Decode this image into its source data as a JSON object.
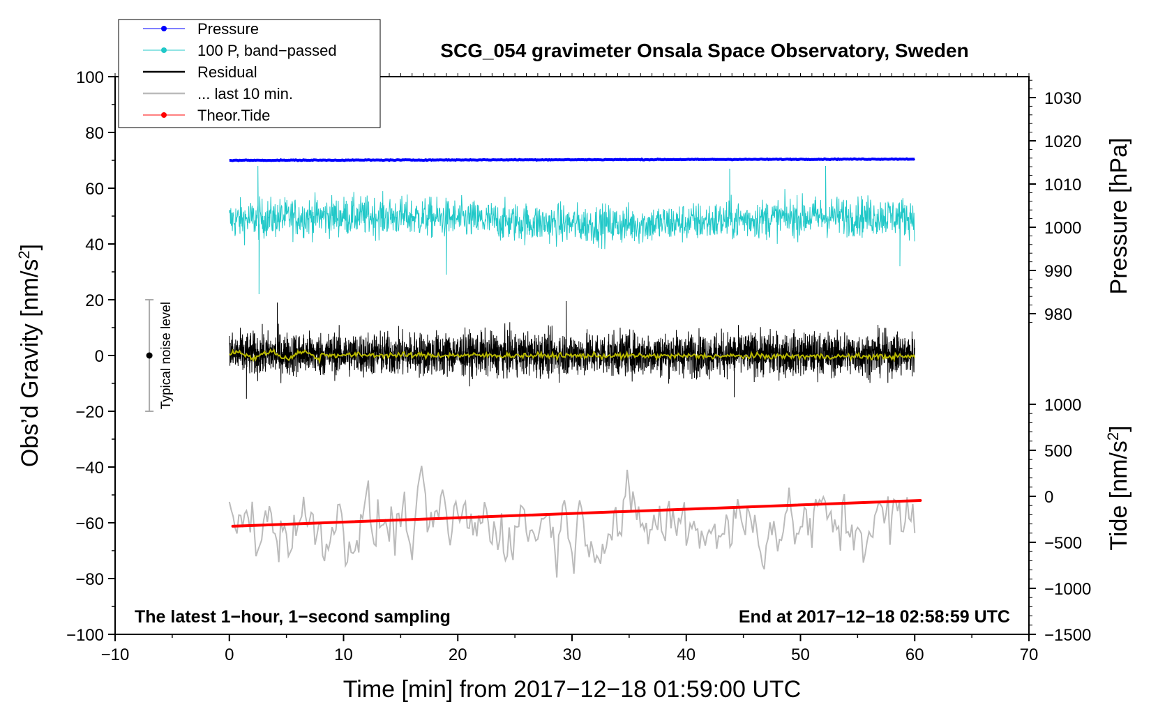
{
  "chart_data": {
    "type": "line",
    "title": "SCG_054 gravimeter Onsala Space Observatory, Sweden",
    "xlabel": "Time [min] from 2017−12−18 01:59:00 UTC",
    "ylabel_left": "Obs’d Gravity [nm/s",
    "ylabel_left_sup": "2",
    "ylabel_left_close": "]",
    "ylabel_right_pressure": "Pressure [hPa]",
    "ylabel_right_tide": "Tide [nm/s",
    "ylabel_right_tide_sup": "2",
    "ylabel_right_tide_close": "]",
    "xlim": [
      -10,
      70
    ],
    "ylim_left": [
      -100,
      100
    ],
    "x_ticks": [
      -10,
      0,
      10,
      20,
      30,
      40,
      50,
      60,
      70
    ],
    "x_tick_labels": [
      "−10",
      "0",
      "10",
      "20",
      "30",
      "40",
      "50",
      "60",
      "70"
    ],
    "y_left_ticks": [
      100,
      80,
      60,
      40,
      20,
      0,
      -20,
      -40,
      -60,
      -80,
      -100
    ],
    "y_left_tick_labels": [
      "100",
      "80",
      "60",
      "40",
      "20",
      "0",
      "−20",
      "−40",
      "−60",
      "−80",
      "−100"
    ],
    "pressure_axis": {
      "ticks": [
        1030,
        1020,
        1010,
        1000,
        990,
        980
      ],
      "tick_labels": [
        "1030",
        "1020",
        "1010",
        "1000",
        "990",
        "980"
      ],
      "ref": {
        "hpa_a": 1000,
        "grav_a": 46.0,
        "hpa_b": 980,
        "grav_b": 15.0
      }
    },
    "tide_axis": {
      "ticks": [
        1000,
        500,
        0,
        -500,
        -1000,
        -1500
      ],
      "tick_labels": [
        "1000",
        "500",
        "0",
        "−500",
        "−1000",
        "−1500"
      ],
      "ref": {
        "tide_a": 0,
        "grav_a": -50.5,
        "tide_b": -1500,
        "grav_b": -100
      }
    },
    "annotations": {
      "left": "The latest 1−hour, 1−second sampling",
      "right": "End at 2017−12−18 02:58:59 UTC"
    },
    "noise_bar": {
      "x": -7,
      "center": 0,
      "low": -20,
      "high": 20,
      "label": "Typical noise level"
    },
    "legend": [
      {
        "name": "Pressure",
        "color": "#0000ff",
        "marker": true
      },
      {
        "name": "100 P, band−passed",
        "color": "#20c8c8",
        "marker": true
      },
      {
        "name": "Residual",
        "color": "#000000",
        "marker": false
      },
      {
        "name": "... last 10 min.",
        "color": "#bbbbbb",
        "marker": false
      },
      {
        "name": "Theor.Tide",
        "color": "#ff0000",
        "marker": true
      }
    ],
    "series": [
      {
        "name": "Pressure",
        "color": "#0000ff",
        "x_range": [
          0,
          60
        ],
        "start_hpa": 1015.8,
        "end_hpa": 1016.1,
        "noise_hpa": 0.15,
        "display_level": 70
      },
      {
        "name": "100 P, band−passed",
        "color": "#20c8c8",
        "x_range": [
          0,
          60
        ],
        "center": 48.5,
        "amplitude": 6.5,
        "spikes": [
          [
            2.5,
            68
          ],
          [
            2.6,
            22
          ],
          [
            19.0,
            29
          ],
          [
            43.8,
            67
          ],
          [
            52.2,
            68
          ],
          [
            58.7,
            32
          ]
        ]
      },
      {
        "name": "Residual",
        "color": "#000000",
        "x_range": [
          0,
          60
        ],
        "center": 0.5,
        "amplitude": 6.5,
        "spikes": [
          [
            4.2,
            19
          ],
          [
            29.5,
            19.5
          ],
          [
            1.5,
            -15.5
          ],
          [
            44.2,
            -15
          ]
        ]
      },
      {
        "name": "Residual smoothed",
        "color": "#b8b800",
        "x_range": [
          0,
          60
        ],
        "center": 0.3,
        "amplitude": 1.0
      },
      {
        "name": "... last 10 min.",
        "color": "#bbbbbb",
        "x_range": [
          0,
          60
        ],
        "center": -60.5,
        "amplitude": 7.5,
        "start_value": -52.5
      },
      {
        "name": "Theor.Tide",
        "color": "#ff0000",
        "x": [
          0.3,
          60.5
        ],
        "tide_values": [
          -325,
          -45
        ]
      }
    ]
  }
}
